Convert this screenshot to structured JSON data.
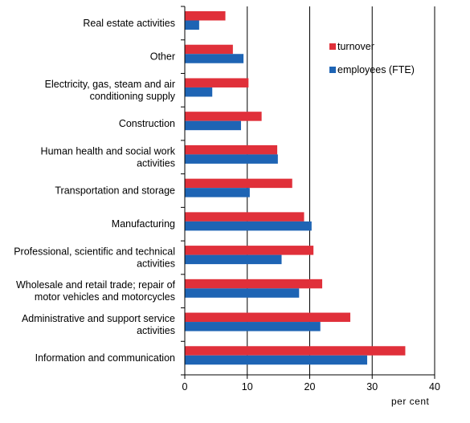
{
  "chart_data": {
    "type": "bar",
    "orientation": "horizontal",
    "categories": [
      "Real estate activities",
      "Other",
      "Electricity, gas, steam and air conditioning supply",
      "Construction",
      "Human health and social work activities",
      "Transportation and storage",
      "Manufacturing",
      "Professional, scientific and technical activities",
      "Wholesale and retail trade; repair of motor vehicles and motorcycles",
      "Administrative and support service activities",
      "Information and communication"
    ],
    "category_lines": [
      [
        "Real estate activities"
      ],
      [
        "Other"
      ],
      [
        "Electricity, gas, steam and air",
        "conditioning supply"
      ],
      [
        "Construction"
      ],
      [
        "Human health and social work",
        "activities"
      ],
      [
        "Transportation and storage"
      ],
      [
        "Manufacturing"
      ],
      [
        "Professional, scientific and technical",
        "activities"
      ],
      [
        "Wholesale and retail trade; repair of",
        "motor vehicles and motorcycles"
      ],
      [
        "Administrative and support service",
        "activities"
      ],
      [
        "Information and communication"
      ]
    ],
    "series": [
      {
        "name": "turnover",
        "color": "#e0303a",
        "values": [
          6.5,
          7.7,
          10.2,
          12.3,
          14.8,
          17.2,
          19.1,
          20.6,
          22.0,
          26.5,
          35.3
        ]
      },
      {
        "name": "employees (FTE)",
        "color": "#1e64b4",
        "values": [
          2.3,
          9.4,
          4.4,
          9.0,
          14.9,
          10.4,
          20.3,
          15.5,
          18.3,
          21.7,
          29.2
        ]
      }
    ],
    "xlim": [
      0,
      40
    ],
    "xticks": [
      "0",
      "10",
      "20",
      "30",
      "40"
    ],
    "xlabel": "per cent",
    "ylabel": "",
    "title": "",
    "grid": "vertical",
    "legend": "top-right"
  }
}
